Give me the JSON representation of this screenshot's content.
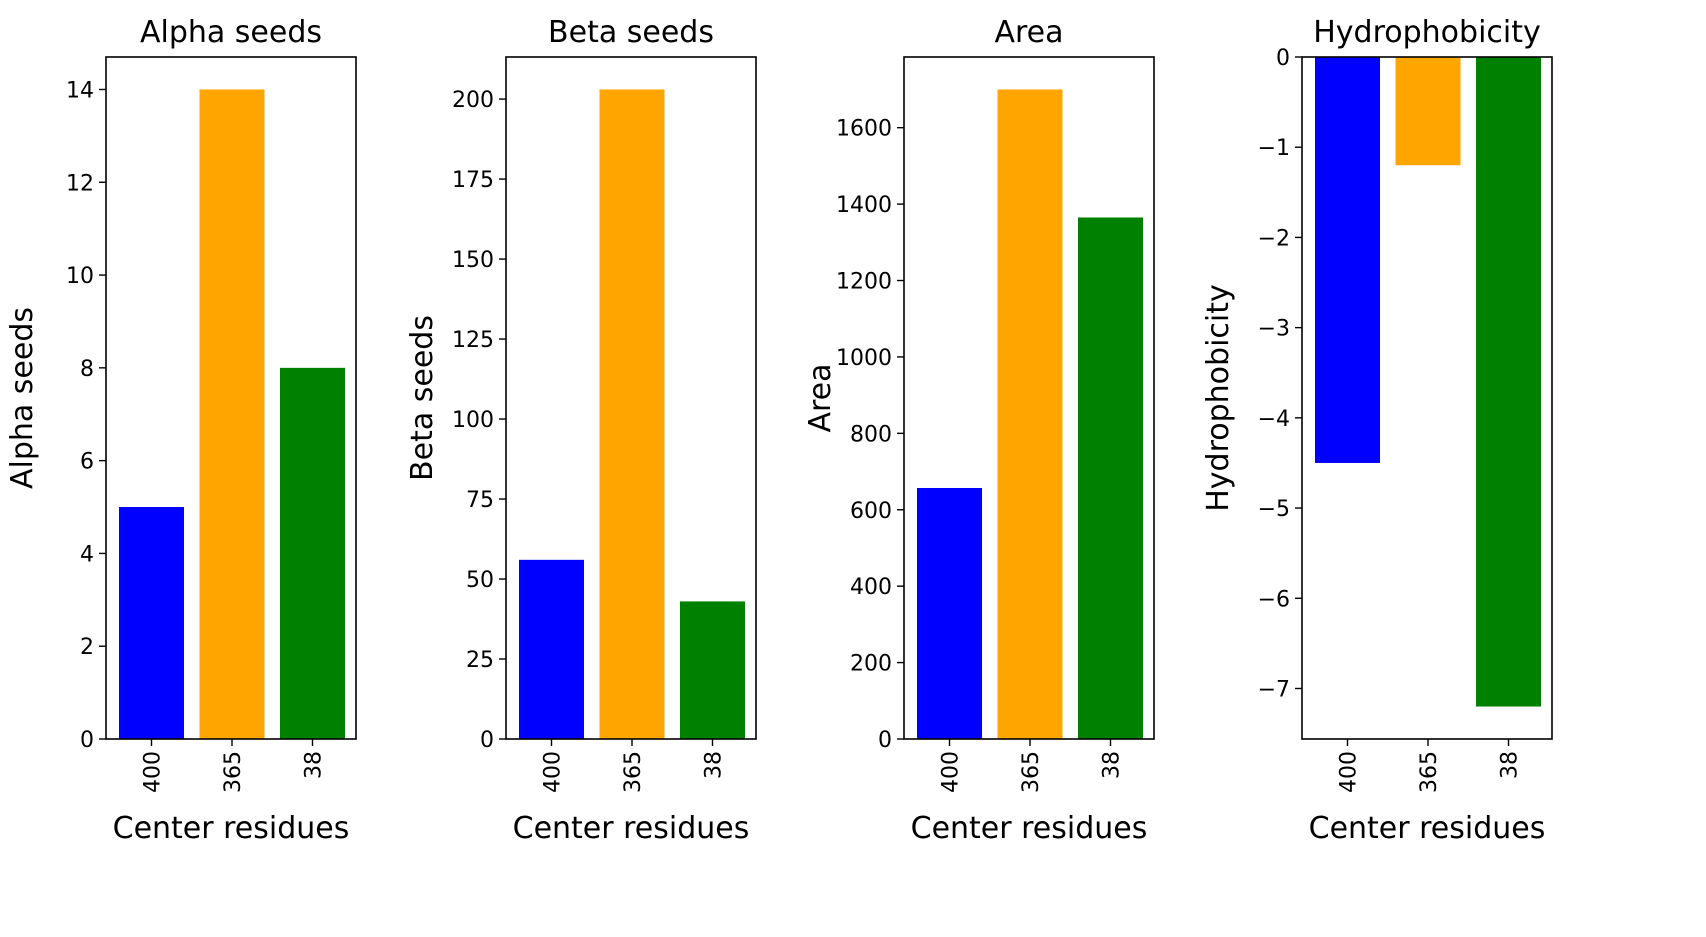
{
  "chart_data": [
    {
      "type": "bar",
      "title": "Alpha seeds",
      "xlabel": "Center residues",
      "ylabel": "Alpha seeds",
      "categories": [
        "400",
        "365",
        "38"
      ],
      "values": [
        5,
        14,
        8
      ],
      "colors": [
        "#0000ff",
        "#ffa500",
        "#008000"
      ],
      "ylim": [
        0,
        14.7
      ],
      "yticks": [
        0,
        2,
        4,
        6,
        8,
        10,
        12,
        14
      ],
      "ytick_labels": [
        "0",
        "2",
        "4",
        "6",
        "8",
        "10",
        "12",
        "14"
      ],
      "grid": false,
      "legend": "none"
    },
    {
      "type": "bar",
      "title": "Beta seeds",
      "xlabel": "Center residues",
      "ylabel": "Beta seeds",
      "categories": [
        "400",
        "365",
        "38"
      ],
      "values": [
        56,
        203,
        43
      ],
      "colors": [
        "#0000ff",
        "#ffa500",
        "#008000"
      ],
      "ylim": [
        0,
        213.15
      ],
      "yticks": [
        0,
        25,
        50,
        75,
        100,
        125,
        150,
        175,
        200
      ],
      "ytick_labels": [
        "0",
        "25",
        "50",
        "75",
        "100",
        "125",
        "150",
        "175",
        "200"
      ],
      "grid": false,
      "legend": "none"
    },
    {
      "type": "bar",
      "title": "Area",
      "xlabel": "Center residues",
      "ylabel": "Area",
      "categories": [
        "400",
        "365",
        "38"
      ],
      "values": [
        657,
        1700,
        1365
      ],
      "colors": [
        "#0000ff",
        "#ffa500",
        "#008000"
      ],
      "ylim": [
        0,
        1785
      ],
      "yticks": [
        0,
        200,
        400,
        600,
        800,
        1000,
        1200,
        1400,
        1600
      ],
      "ytick_labels": [
        "0",
        "200",
        "400",
        "600",
        "800",
        "1000",
        "1200",
        "1400",
        "1600"
      ],
      "grid": false,
      "legend": "none"
    },
    {
      "type": "bar",
      "title": "Hydrophobicity",
      "xlabel": "Center residues",
      "ylabel": "Hydrophobicity",
      "categories": [
        "400",
        "365",
        "38"
      ],
      "values": [
        -4.5,
        -1.2,
        -7.2
      ],
      "colors": [
        "#0000ff",
        "#ffa500",
        "#008000"
      ],
      "ylim": [
        -7.56,
        0
      ],
      "yticks": [
        0,
        -1,
        -2,
        -3,
        -4,
        -5,
        -6,
        -7
      ],
      "ytick_labels": [
        "0",
        "−1",
        "−2",
        "−3",
        "−4",
        "−5",
        "−6",
        "−7"
      ],
      "grid": false,
      "legend": "none"
    }
  ]
}
